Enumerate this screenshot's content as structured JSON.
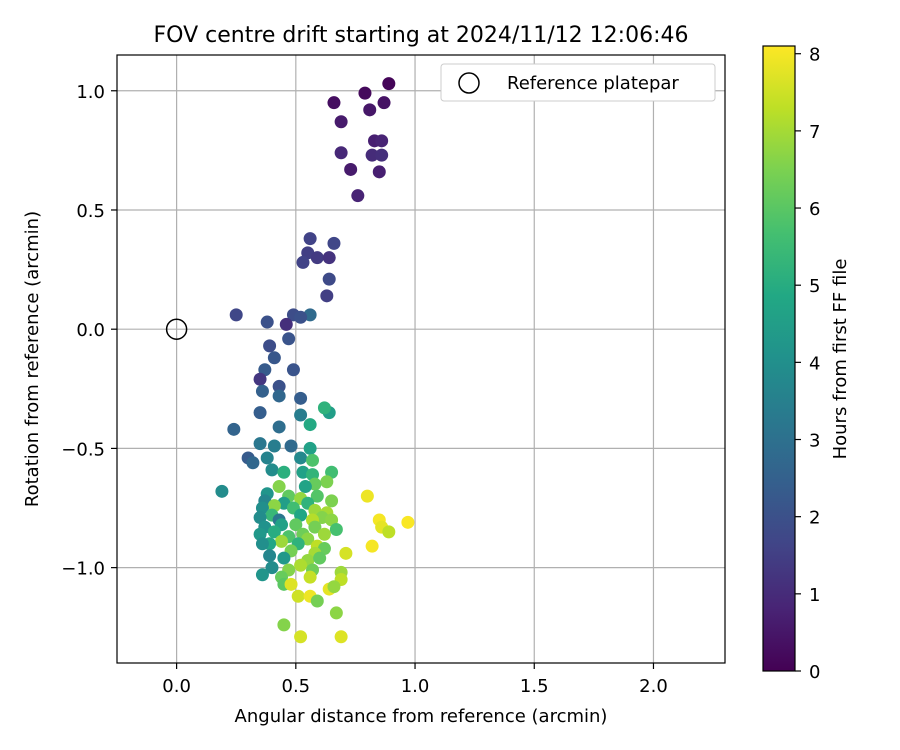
{
  "chart_data": {
    "type": "scatter",
    "title": "FOV centre drift starting at 2024/11/12 12:06:46",
    "xlabel": "Angular distance from reference (arcmin)",
    "ylabel": "Rotation from reference (arcmin)",
    "xlim": [
      -0.25,
      2.3
    ],
    "ylim": [
      -1.4,
      1.15
    ],
    "x_ticks": [
      0.0,
      0.5,
      1.0,
      1.5,
      2.0
    ],
    "x_tick_labels": [
      "0.0",
      "0.5",
      "1.0",
      "1.5",
      "2.0"
    ],
    "y_ticks": [
      1.0,
      0.5,
      0.0,
      -0.5,
      -1.0
    ],
    "y_tick_labels": [
      "1.0",
      "0.5",
      "0.0",
      "−0.5",
      "−1.0"
    ],
    "grid": true,
    "legend": {
      "position": "top-right",
      "entries": [
        "Reference platepar"
      ]
    },
    "reference_point": {
      "x": 0.0,
      "y": 0.0,
      "label": "Reference platepar",
      "marker": "open-circle"
    },
    "colorbar": {
      "label": "Hours from first FF file",
      "colormap": "viridis",
      "range": [
        0,
        8.1
      ],
      "ticks": [
        0,
        1,
        2,
        3,
        4,
        5,
        6,
        7,
        8
      ],
      "tick_labels": [
        "0",
        "1",
        "2",
        "3",
        "4",
        "5",
        "6",
        "7",
        "8"
      ]
    },
    "points": [
      [
        0.89,
        1.03,
        0.1
      ],
      [
        0.79,
        0.99,
        0.2
      ],
      [
        0.66,
        0.95,
        0.3
      ],
      [
        0.87,
        0.95,
        0.4
      ],
      [
        0.81,
        0.92,
        0.5
      ],
      [
        0.69,
        0.87,
        0.6
      ],
      [
        0.83,
        0.79,
        0.7
      ],
      [
        0.86,
        0.79,
        0.8
      ],
      [
        0.69,
        0.74,
        0.9
      ],
      [
        0.82,
        0.73,
        1.0
      ],
      [
        0.86,
        0.73,
        1.1
      ],
      [
        0.73,
        0.67,
        0.6
      ],
      [
        0.85,
        0.66,
        0.7
      ],
      [
        0.76,
        0.56,
        0.8
      ],
      [
        0.56,
        0.38,
        1.6
      ],
      [
        0.66,
        0.36,
        1.7
      ],
      [
        0.55,
        0.32,
        1.5
      ],
      [
        0.59,
        0.3,
        1.4
      ],
      [
        0.53,
        0.28,
        1.6
      ],
      [
        0.64,
        0.3,
        1.2
      ],
      [
        0.64,
        0.21,
        1.8
      ],
      [
        0.63,
        0.14,
        1.5
      ],
      [
        0.25,
        0.06,
        1.7
      ],
      [
        0.49,
        0.06,
        1.9
      ],
      [
        0.56,
        0.06,
        2.8
      ],
      [
        0.52,
        0.05,
        2.0
      ],
      [
        0.38,
        0.03,
        2.0
      ],
      [
        0.46,
        0.02,
        1.1
      ],
      [
        0.47,
        -0.04,
        2.1
      ],
      [
        0.39,
        -0.07,
        1.9
      ],
      [
        0.41,
        -0.12,
        2.2
      ],
      [
        0.37,
        -0.17,
        2.3
      ],
      [
        0.49,
        -0.17,
        2.1
      ],
      [
        0.35,
        -0.21,
        1.3
      ],
      [
        0.43,
        -0.24,
        2.0
      ],
      [
        0.36,
        -0.26,
        2.5
      ],
      [
        0.43,
        -0.28,
        2.7
      ],
      [
        0.52,
        -0.29,
        2.4
      ],
      [
        0.35,
        -0.35,
        2.4
      ],
      [
        0.52,
        -0.36,
        3.4
      ],
      [
        0.64,
        -0.35,
        4.5
      ],
      [
        0.62,
        -0.33,
        5.2
      ],
      [
        0.24,
        -0.42,
        2.6
      ],
      [
        0.43,
        -0.41,
        2.9
      ],
      [
        0.56,
        -0.4,
        4.9
      ],
      [
        0.35,
        -0.48,
        3.2
      ],
      [
        0.41,
        -0.49,
        3.4
      ],
      [
        0.48,
        -0.49,
        2.8
      ],
      [
        0.56,
        -0.5,
        4.6
      ],
      [
        0.3,
        -0.54,
        2.3
      ],
      [
        0.52,
        -0.54,
        3.8
      ],
      [
        0.38,
        -0.54,
        3.6
      ],
      [
        0.32,
        -0.56,
        2.7
      ],
      [
        0.57,
        -0.55,
        5.8
      ],
      [
        0.4,
        -0.59,
        3.9
      ],
      [
        0.45,
        -0.6,
        5.1
      ],
      [
        0.53,
        -0.6,
        4.6
      ],
      [
        0.57,
        -0.61,
        5.3
      ],
      [
        0.65,
        -0.6,
        5.6
      ],
      [
        0.63,
        -0.64,
        6.5
      ],
      [
        0.58,
        -0.65,
        6.2
      ],
      [
        0.43,
        -0.66,
        6.6
      ],
      [
        0.54,
        -0.66,
        4.7
      ],
      [
        0.19,
        -0.68,
        3.9
      ],
      [
        0.38,
        -0.69,
        4.2
      ],
      [
        0.47,
        -0.7,
        6.1
      ],
      [
        0.59,
        -0.7,
        5.9
      ],
      [
        0.52,
        -0.71,
        6.8
      ],
      [
        0.37,
        -0.72,
        3.7
      ],
      [
        0.65,
        -0.72,
        6.5
      ],
      [
        0.45,
        -0.73,
        4.5
      ],
      [
        0.55,
        -0.73,
        5.2
      ],
      [
        0.41,
        -0.74,
        6.7
      ],
      [
        0.36,
        -0.75,
        4.0
      ],
      [
        0.49,
        -0.75,
        5.6
      ],
      [
        0.58,
        -0.76,
        6.9
      ],
      [
        0.63,
        -0.77,
        7.0
      ],
      [
        0.4,
        -0.78,
        5.4
      ],
      [
        0.52,
        -0.78,
        4.8
      ],
      [
        0.61,
        -0.79,
        6.6
      ],
      [
        0.35,
        -0.79,
        3.9
      ],
      [
        0.43,
        -0.8,
        3.2
      ],
      [
        0.57,
        -0.8,
        7.2
      ],
      [
        0.65,
        -0.8,
        6.7
      ],
      [
        0.5,
        -0.82,
        6.1
      ],
      [
        0.44,
        -0.82,
        4.6
      ],
      [
        0.37,
        -0.83,
        4.1
      ],
      [
        0.58,
        -0.83,
        6.4
      ],
      [
        0.67,
        -0.84,
        5.7
      ],
      [
        0.41,
        -0.85,
        5.0
      ],
      [
        0.53,
        -0.86,
        6.3
      ],
      [
        0.62,
        -0.86,
        6.9
      ],
      [
        0.35,
        -0.86,
        4.3
      ],
      [
        0.47,
        -0.87,
        5.8
      ],
      [
        0.55,
        -0.88,
        6.7
      ],
      [
        0.44,
        -0.89,
        6.9
      ],
      [
        0.39,
        -0.9,
        4.8
      ],
      [
        0.51,
        -0.9,
        5.2
      ],
      [
        0.59,
        -0.91,
        7.3
      ],
      [
        0.36,
        -0.9,
        4.0
      ],
      [
        0.62,
        -0.92,
        6.2
      ],
      [
        0.48,
        -0.93,
        6.4
      ],
      [
        0.58,
        -0.94,
        7.0
      ],
      [
        0.71,
        -0.94,
        7.6
      ],
      [
        0.39,
        -0.95,
        3.7
      ],
      [
        0.45,
        -0.96,
        4.3
      ],
      [
        0.55,
        -0.97,
        6.8
      ],
      [
        0.6,
        -0.96,
        6.1
      ],
      [
        0.52,
        -0.99,
        7.1
      ],
      [
        0.4,
        -1.0,
        3.9
      ],
      [
        0.47,
        -1.01,
        6.6
      ],
      [
        0.57,
        -1.01,
        6.3
      ],
      [
        0.69,
        -1.02,
        6.9
      ],
      [
        0.36,
        -1.03,
        4.2
      ],
      [
        0.44,
        -1.04,
        6.2
      ],
      [
        0.56,
        -1.04,
        7.4
      ],
      [
        0.69,
        -1.05,
        7.3
      ],
      [
        0.45,
        -1.07,
        6.0
      ],
      [
        0.48,
        -1.07,
        7.7
      ],
      [
        0.64,
        -1.09,
        7.8
      ],
      [
        0.66,
        -1.08,
        6.8
      ],
      [
        0.51,
        -1.12,
        7.5
      ],
      [
        0.56,
        -1.12,
        7.9
      ],
      [
        0.59,
        -1.14,
        6.4
      ],
      [
        0.67,
        -1.19,
        6.7
      ],
      [
        0.45,
        -1.24,
        6.6
      ],
      [
        0.52,
        -1.29,
        7.6
      ],
      [
        0.69,
        -1.29,
        7.7
      ],
      [
        0.8,
        -0.7,
        7.9
      ],
      [
        0.85,
        -0.8,
        8.0
      ],
      [
        0.97,
        -0.81,
        8.05
      ],
      [
        0.86,
        -0.83,
        7.8
      ],
      [
        0.89,
        -0.85,
        7.3
      ],
      [
        0.82,
        -0.91,
        8.0
      ]
    ]
  }
}
